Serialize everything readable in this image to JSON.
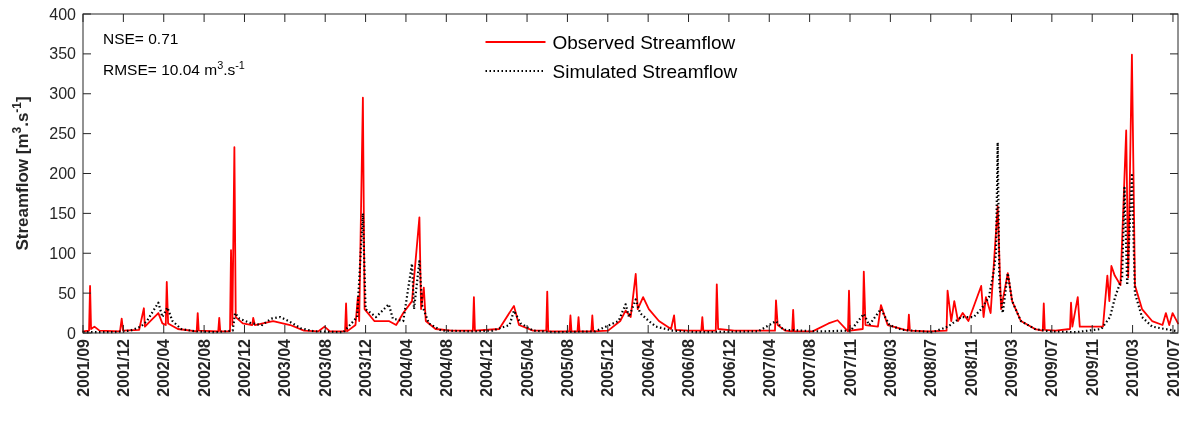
{
  "chart_data": {
    "type": "line",
    "ylabel": "Streamflow [m$^{3}$.s$^{-1}$]",
    "annotations": [
      "NSE= 0.71",
      "RMSE= 10.04 m$^{3}$.s$^{-1}$"
    ],
    "xlim": [
      "2001-09-01",
      "2010-07-31"
    ],
    "xticks": [
      {
        "value": "2001-09-01",
        "label": "2001/09"
      },
      {
        "value": "2001-12-30",
        "label": "2001/12"
      },
      {
        "value": "2002-04-29",
        "label": "2002/04"
      },
      {
        "value": "2002-08-27",
        "label": "2002/08"
      },
      {
        "value": "2002-12-25",
        "label": "2002/12"
      },
      {
        "value": "2003-04-24",
        "label": "2003/04"
      },
      {
        "value": "2003-08-22",
        "label": "2003/08"
      },
      {
        "value": "2003-12-20",
        "label": "2003/12"
      },
      {
        "value": "2004-04-18",
        "label": "2004/04"
      },
      {
        "value": "2004-08-16",
        "label": "2004/08"
      },
      {
        "value": "2004-12-14",
        "label": "2004/12"
      },
      {
        "value": "2005-04-13",
        "label": "2005/04"
      },
      {
        "value": "2005-08-11",
        "label": "2005/08"
      },
      {
        "value": "2005-12-09",
        "label": "2005/12"
      },
      {
        "value": "2006-04-08",
        "label": "2006/04"
      },
      {
        "value": "2006-08-06",
        "label": "2006/08"
      },
      {
        "value": "2006-12-04",
        "label": "2006/12"
      },
      {
        "value": "2007-04-03",
        "label": "2007/04"
      },
      {
        "value": "2007-08-01",
        "label": "2007/08"
      },
      {
        "value": "2007-11-29",
        "label": "2007/11"
      },
      {
        "value": "2008-03-28",
        "label": "2008/03"
      },
      {
        "value": "2008-07-26",
        "label": "2008/07"
      },
      {
        "value": "2008-11-23",
        "label": "2008/11"
      },
      {
        "value": "2009-03-23",
        "label": "2009/03"
      },
      {
        "value": "2009-07-21",
        "label": "2009/07"
      },
      {
        "value": "2009-11-18",
        "label": "2009/11"
      },
      {
        "value": "2010-03-18",
        "label": "2010/03"
      },
      {
        "value": "2010-07-16",
        "label": "2010/07"
      }
    ],
    "ylim": [
      0,
      400
    ],
    "yticks": [
      0,
      50,
      100,
      150,
      200,
      250,
      300,
      350,
      400
    ],
    "legend": "top",
    "grid": false,
    "series": [
      {
        "name": "Observed Streamflow",
        "color": "#ff0000",
        "line_style": "solid",
        "x": [
          "2001-09-01",
          "2001-09-19",
          "2001-09-22",
          "2001-09-25",
          "2001-10-05",
          "2001-10-20",
          "2001-12-20",
          "2001-12-25",
          "2001-12-29",
          "2002-02-15",
          "2002-03-01",
          "2002-03-04",
          "2002-03-20",
          "2002-04-13",
          "2002-04-25",
          "2002-05-05",
          "2002-05-08",
          "2002-05-12",
          "2002-06-10",
          "2002-08-05",
          "2002-08-08",
          "2002-08-11",
          "2002-10-08",
          "2002-10-11",
          "2002-10-14",
          "2002-11-12",
          "2002-11-15",
          "2002-11-19",
          "2002-11-25",
          "2002-11-29",
          "2002-12-20",
          "2003-01-17",
          "2003-01-20",
          "2003-01-25",
          "2003-03-20",
          "2003-05-10",
          "2003-06-20",
          "2003-08-01",
          "2003-08-20",
          "2003-09-05",
          "2003-10-20",
          "2003-10-23",
          "2003-10-26",
          "2003-11-20",
          "2003-11-27",
          "2003-12-01",
          "2003-12-12",
          "2003-12-17",
          "2004-01-15",
          "2004-02-27",
          "2004-03-20",
          "2004-04-10",
          "2004-05-06",
          "2004-05-28",
          "2004-06-02",
          "2004-06-10",
          "2004-06-16",
          "2004-07-15",
          "2004-09-01",
          "2004-11-03",
          "2004-11-06",
          "2004-11-09",
          "2005-01-20",
          "2005-03-05",
          "2005-03-20",
          "2005-05-01",
          "2005-06-09",
          "2005-06-12",
          "2005-06-15",
          "2005-08-17",
          "2005-08-20",
          "2005-08-23",
          "2005-09-10",
          "2005-09-13",
          "2005-09-16",
          "2005-10-21",
          "2005-10-24",
          "2005-10-27",
          "2005-12-10",
          "2006-01-15",
          "2006-01-31",
          "2006-02-15",
          "2006-03-02",
          "2006-03-08",
          "2006-03-24",
          "2006-04-10",
          "2006-05-10",
          "2006-06-15",
          "2006-06-24",
          "2006-06-28",
          "2006-08-05",
          "2006-09-13",
          "2006-09-16",
          "2006-09-19",
          "2006-10-26",
          "2006-10-29",
          "2006-11-02",
          "2006-12-20",
          "2007-04-20",
          "2007-04-23",
          "2007-04-28",
          "2007-05-20",
          "2007-06-10",
          "2007-06-13",
          "2007-06-16",
          "2007-08-10",
          "2007-09-26",
          "2007-10-23",
          "2007-11-23",
          "2007-11-26",
          "2007-11-29",
          "2008-01-06",
          "2008-01-09",
          "2008-01-14",
          "2008-02-20",
          "2008-02-29",
          "2008-03-20",
          "2008-05-19",
          "2008-05-22",
          "2008-05-25",
          "2008-07-20",
          "2008-09-11",
          "2008-09-14",
          "2008-09-25",
          "2008-10-04",
          "2008-10-15",
          "2008-10-29",
          "2008-11-15",
          "2008-12-23",
          "2008-12-30",
          "2009-01-06",
          "2009-01-20",
          "2009-02-10",
          "2009-02-20",
          "2009-03-12",
          "2009-03-25",
          "2009-04-20",
          "2009-06-01",
          "2009-06-24",
          "2009-06-27",
          "2009-06-30",
          "2009-08-01",
          "2009-09-13",
          "2009-09-16",
          "2009-09-20",
          "2009-10-06",
          "2009-10-12",
          "2009-12-20",
          "2010-01-02",
          "2010-01-08",
          "2010-01-14",
          "2010-01-24",
          "2010-02-10",
          "2010-02-27",
          "2010-03-05",
          "2010-03-16",
          "2010-03-25",
          "2010-04-15",
          "2010-05-15",
          "2010-06-15",
          "2010-06-25",
          "2010-07-05",
          "2010-07-15",
          "2010-07-31"
        ],
        "values": [
          2,
          3,
          59,
          5,
          8,
          3,
          2,
          18,
          3,
          4,
          31,
          8,
          15,
          25,
          12,
          10,
          64,
          12,
          5,
          2,
          25,
          3,
          2,
          19,
          2,
          2,
          104,
          10,
          233,
          20,
          12,
          10,
          19,
          10,
          15,
          10,
          3,
          2,
          8,
          2,
          2,
          37,
          2,
          10,
          45,
          15,
          295,
          30,
          15,
          15,
          10,
          25,
          40,
          145,
          30,
          57,
          15,
          5,
          3,
          3,
          45,
          3,
          5,
          34,
          10,
          3,
          3,
          52,
          2,
          2,
          22,
          2,
          2,
          20,
          2,
          2,
          22,
          2,
          3,
          15,
          28,
          20,
          74,
          30,
          45,
          30,
          15,
          5,
          22,
          4,
          3,
          3,
          20,
          3,
          3,
          61,
          5,
          3,
          3,
          41,
          10,
          3,
          2,
          29,
          2,
          2,
          12,
          16,
          2,
          53,
          3,
          5,
          77,
          10,
          8,
          35,
          10,
          3,
          23,
          3,
          2,
          3,
          53,
          15,
          40,
          15,
          25,
          15,
          59,
          20,
          45,
          25,
          159,
          30,
          75,
          40,
          15,
          5,
          3,
          37,
          4,
          3,
          5,
          38,
          8,
          45,
          8,
          8,
          72,
          40,
          84,
          72,
          60,
          254,
          70,
          349,
          60,
          30,
          15,
          10,
          25,
          10,
          25,
          12
        ]
      },
      {
        "name": "Simulated Streamflow",
        "color": "#000000",
        "line_style": "dotted",
        "x": [
          "2001-09-01",
          "2001-12-01",
          "2002-01-20",
          "2002-02-20",
          "2002-03-10",
          "2002-04-13",
          "2002-04-25",
          "2002-05-10",
          "2002-05-25",
          "2002-06-20",
          "2002-08-01",
          "2002-10-01",
          "2002-11-20",
          "2002-11-27",
          "2002-12-10",
          "2003-01-15",
          "2003-02-15",
          "2003-03-15",
          "2003-04-10",
          "2003-05-05",
          "2003-06-10",
          "2003-07-20",
          "2003-10-15",
          "2003-11-25",
          "2003-12-12",
          "2003-12-20",
          "2004-01-20",
          "2004-02-27",
          "2004-03-10",
          "2004-04-10",
          "2004-05-06",
          "2004-05-12",
          "2004-05-28",
          "2004-06-05",
          "2004-06-25",
          "2004-08-01",
          "2004-11-01",
          "2005-01-01",
          "2005-02-20",
          "2005-03-05",
          "2005-03-25",
          "2005-05-01",
          "2005-07-01",
          "2005-11-01",
          "2006-01-10",
          "2006-01-31",
          "2006-02-10",
          "2006-03-02",
          "2006-03-15",
          "2006-04-10",
          "2006-05-01",
          "2006-06-20",
          "2006-09-01",
          "2007-03-01",
          "2007-04-23",
          "2007-05-15",
          "2007-09-01",
          "2007-12-01",
          "2008-01-09",
          "2008-01-25",
          "2008-02-29",
          "2008-03-25",
          "2008-05-01",
          "2008-08-01",
          "2008-09-15",
          "2008-10-25",
          "2008-12-01",
          "2008-12-23",
          "2009-01-15",
          "2009-01-29",
          "2009-02-05",
          "2009-02-10",
          "2009-02-15",
          "2009-02-25",
          "2009-03-12",
          "2009-03-25",
          "2009-04-20",
          "2009-06-01",
          "2009-07-15",
          "2009-10-01",
          "2009-12-15",
          "2010-01-10",
          "2010-01-25",
          "2010-02-15",
          "2010-02-22",
          "2010-03-02",
          "2010-03-16",
          "2010-03-25",
          "2010-04-15",
          "2010-05-15",
          "2010-07-31"
        ],
        "values": [
          1,
          1,
          3,
          8,
          15,
          38,
          20,
          32,
          15,
          5,
          2,
          1,
          3,
          25,
          18,
          12,
          10,
          18,
          20,
          15,
          6,
          2,
          1,
          20,
          150,
          30,
          20,
          36,
          18,
          15,
          87,
          30,
          90,
          35,
          12,
          3,
          2,
          3,
          10,
          28,
          12,
          3,
          1,
          2,
          15,
          36,
          20,
          42,
          25,
          15,
          8,
          3,
          1,
          2,
          15,
          4,
          2,
          3,
          24,
          10,
          30,
          10,
          4,
          1,
          8,
          20,
          20,
          30,
          45,
          77,
          100,
          239,
          60,
          25,
          75,
          40,
          15,
          5,
          2,
          1,
          5,
          20,
          45,
          70,
          182,
          60,
          198,
          50,
          20,
          8,
          2
        ]
      }
    ]
  }
}
